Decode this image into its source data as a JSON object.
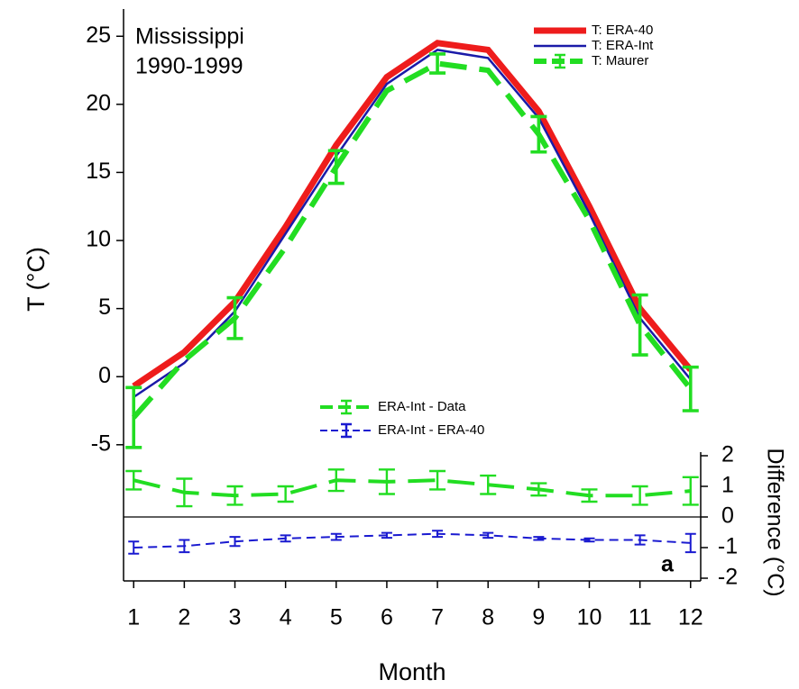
{
  "chart_data": {
    "type": "line",
    "title": "Mississippi",
    "subtitle": "1990-1999",
    "y_label": "T (°C)",
    "y2_label": "Difference (°C)",
    "x_label": "Month",
    "panel_label": "a",
    "x": [
      1,
      2,
      3,
      4,
      5,
      6,
      7,
      8,
      9,
      10,
      11,
      12
    ],
    "xlim": [
      0.8,
      12.2
    ],
    "xticks": [
      1,
      2,
      3,
      4,
      5,
      6,
      7,
      8,
      9,
      10,
      11,
      12
    ],
    "ylim": [
      -15,
      27
    ],
    "yticks": [
      -5,
      0,
      5,
      10,
      15,
      20,
      25
    ],
    "y2lim": [
      -2,
      2
    ],
    "y2ticks": [
      -2,
      -1,
      0,
      1,
      2
    ],
    "grid": false,
    "series": [
      {
        "name": "T: ERA-40",
        "color": "#ee1c1c",
        "width": 7,
        "style": "solid",
        "values": [
          -0.7,
          1.8,
          5.5,
          11,
          17,
          22,
          24.5,
          24,
          19.5,
          12.5,
          5,
          0.5
        ]
      },
      {
        "name": "T: ERA-Int",
        "color": "#1a1aa8",
        "width": 2.5,
        "style": "solid",
        "values": [
          -1.5,
          1,
          4.8,
          10.5,
          16.2,
          21.5,
          24,
          23.4,
          19,
          12,
          4.3,
          -0.2
        ]
      },
      {
        "name": "T: Maurer",
        "color": "#22dd22",
        "width": 6,
        "style": "dashed",
        "values": [
          -3,
          1.2,
          4.3,
          9.5,
          15.4,
          21,
          23,
          22.5,
          17.8,
          11.5,
          3.8,
          -0.9
        ],
        "errors": [
          2.2,
          null,
          1.5,
          null,
          1.2,
          null,
          0.7,
          null,
          1.3,
          null,
          2.2,
          1.6
        ]
      },
      {
        "name": "ERA-Int - Data",
        "color": "#22dd22",
        "width": 4,
        "style": "dashed",
        "axis": "y2",
        "values": [
          1.2,
          0.8,
          0.7,
          0.75,
          1.2,
          1.15,
          1.2,
          1.05,
          0.9,
          0.7,
          0.7,
          0.85
        ],
        "errors": [
          0.3,
          0.45,
          0.3,
          0.25,
          0.35,
          0.4,
          0.3,
          0.3,
          0.2,
          0.2,
          0.3,
          0.45
        ]
      },
      {
        "name": "ERA-Int - ERA-40",
        "color": "#1a1ad0",
        "width": 2,
        "style": "dashed",
        "axis": "y2",
        "values": [
          -1,
          -0.95,
          -0.8,
          -0.7,
          -0.65,
          -0.6,
          -0.55,
          -0.6,
          -0.7,
          -0.75,
          -0.75,
          -0.85
        ],
        "errors": [
          0.2,
          0.2,
          0.15,
          0.1,
          0.1,
          0.08,
          0.1,
          0.08,
          0.05,
          0.05,
          0.15,
          0.3
        ]
      }
    ]
  }
}
